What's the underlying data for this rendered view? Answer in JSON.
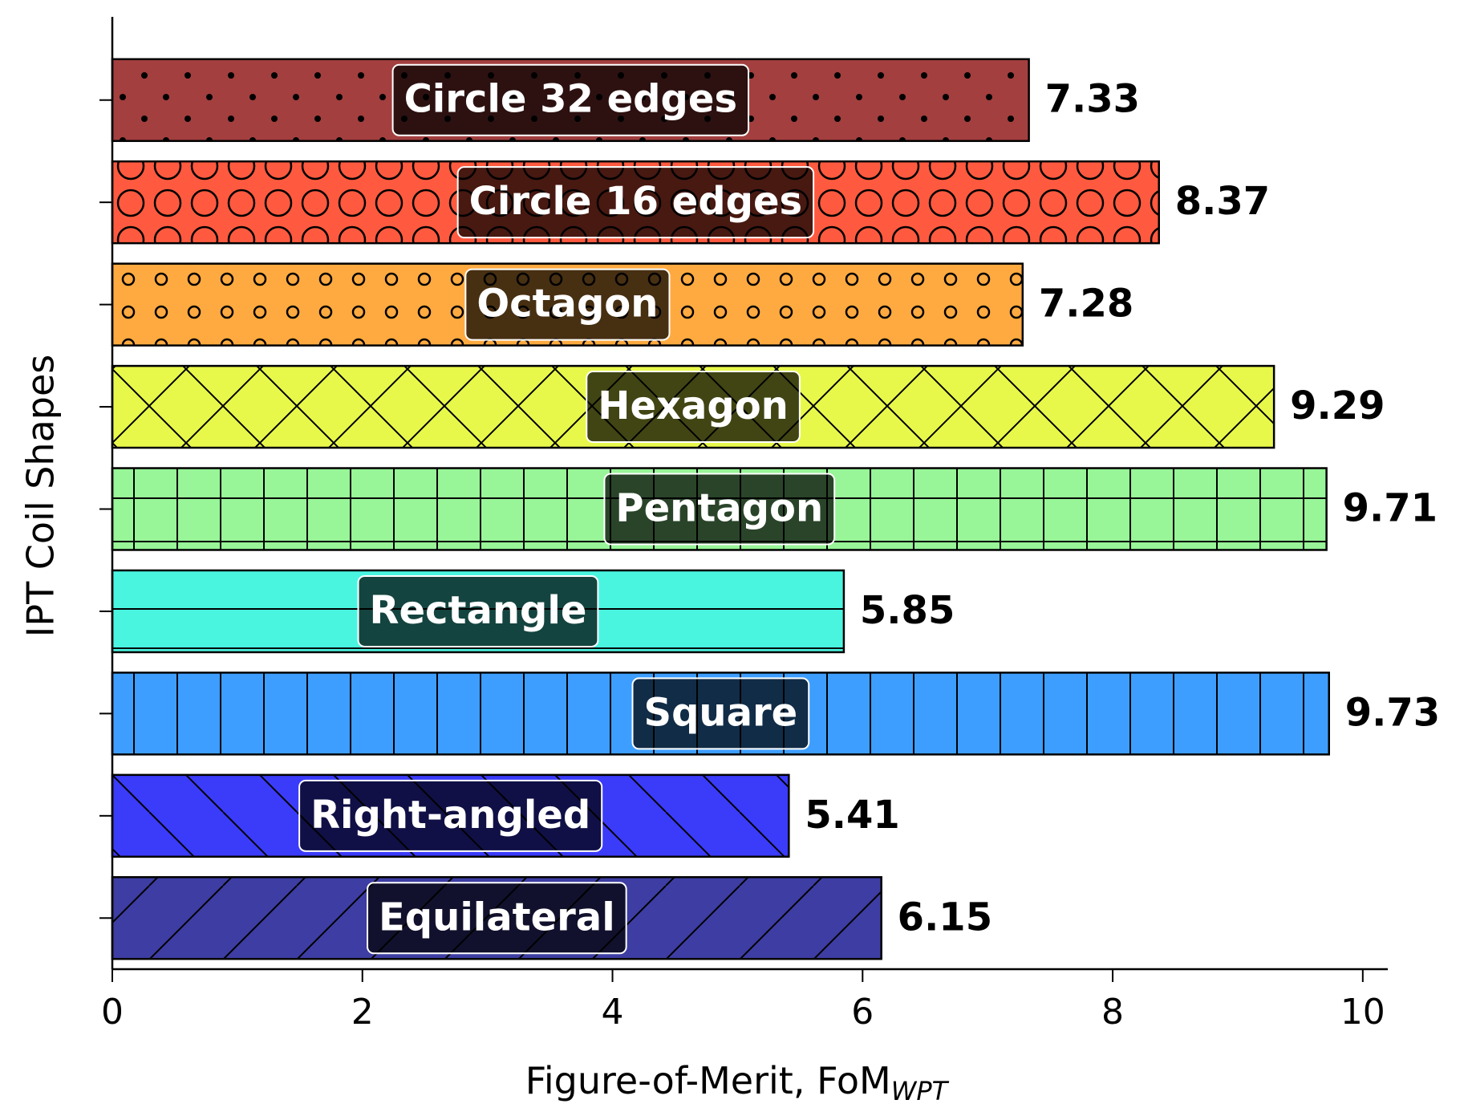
{
  "chart_data": {
    "type": "barh",
    "ylabel": "IPT Coil Shapes",
    "xlabel": "Figure-of-Merit, FoM",
    "xlabel_subscript": "WPT",
    "categories": [
      "Circle 32 edges",
      "Circle 16 edges",
      "Octagon",
      "Hexagon",
      "Pentagon",
      "Rectangle",
      "Square",
      "Right-angled",
      "Equilateral"
    ],
    "values": [
      7.33,
      8.37,
      7.28,
      9.29,
      9.71,
      5.85,
      9.73,
      5.41,
      6.15
    ],
    "colors": [
      "#a33f3f",
      "#ff5a3f",
      "#ffaa40",
      "#e8f84a",
      "#98f598",
      "#4af5e0",
      "#3d9eff",
      "#3b3bfa",
      "#3d3da3"
    ],
    "hatches": [
      ".",
      "O",
      "o",
      "x",
      "+",
      "-",
      "|",
      "\\",
      "/"
    ],
    "xlim": [
      0,
      10.2
    ],
    "xticks": [
      0,
      2,
      4,
      6,
      8,
      10
    ]
  }
}
